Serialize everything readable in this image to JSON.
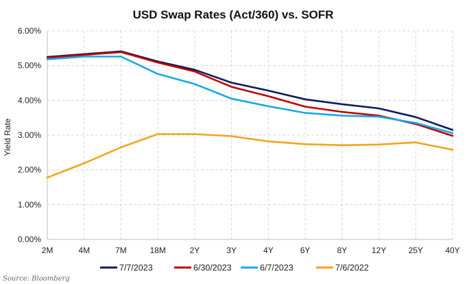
{
  "chart_data": {
    "type": "line",
    "title": "USD Swap Rates (Act/360) vs. SOFR",
    "xlabel": "",
    "ylabel": "Yield Rate",
    "categories": [
      "2M",
      "4M",
      "7M",
      "18M",
      "2Y",
      "3Y",
      "4Y",
      "6Y",
      "8Y",
      "12Y",
      "25Y",
      "40Y"
    ],
    "ylim": [
      0,
      6
    ],
    "yticks": [
      "0.00%",
      "1.00%",
      "2.00%",
      "3.00%",
      "4.00%",
      "5.00%",
      "6.00%"
    ],
    "grid": true,
    "legend_position": "bottom",
    "series": [
      {
        "name": "7/7/2023",
        "color": "#0d1b5e",
        "values": [
          5.25,
          5.33,
          5.41,
          5.12,
          4.88,
          4.51,
          4.28,
          4.03,
          3.89,
          3.77,
          3.52,
          3.15
        ]
      },
      {
        "name": "6/30/2023",
        "color": "#c00000",
        "values": [
          5.23,
          5.31,
          5.39,
          5.09,
          4.83,
          4.39,
          4.12,
          3.82,
          3.67,
          3.56,
          3.32,
          2.98
        ]
      },
      {
        "name": "6/7/2023",
        "color": "#14a9e6",
        "values": [
          5.18,
          5.26,
          5.26,
          4.76,
          4.47,
          4.05,
          3.83,
          3.64,
          3.56,
          3.53,
          3.35,
          3.06
        ]
      },
      {
        "name": "7/6/2022",
        "color": "#f5a21b",
        "values": [
          1.78,
          2.19,
          2.65,
          3.03,
          3.03,
          2.97,
          2.82,
          2.74,
          2.71,
          2.73,
          2.79,
          2.58
        ]
      }
    ]
  },
  "source": "Source: Bloomberg"
}
